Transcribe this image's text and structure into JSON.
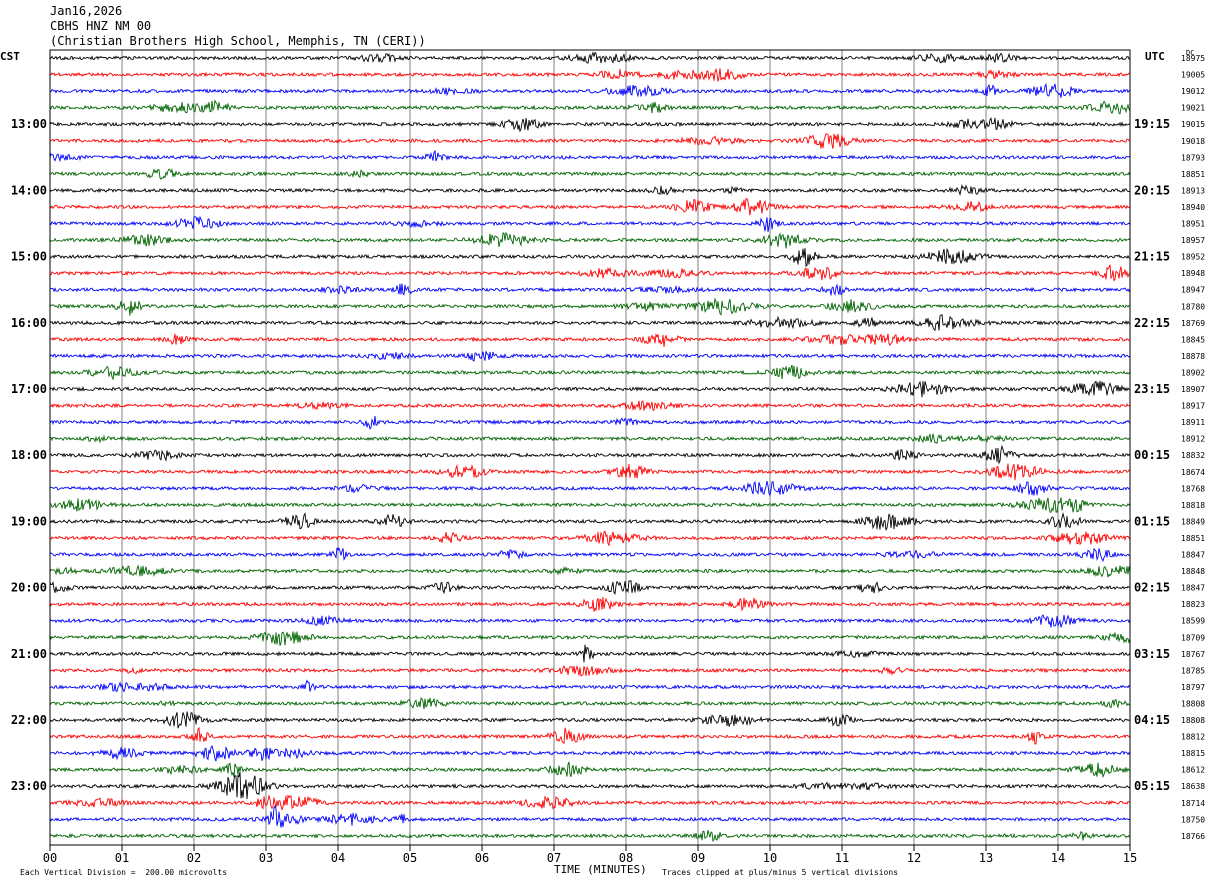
{
  "header": {
    "date": "Jan16,2026",
    "station": "CBHS HNZ NM 00",
    "location": "(Christian Brothers High School, Memphis, TN (CERI))"
  },
  "left_timezone": "CST",
  "right_timezone": "UTC",
  "right_column_label": "DC",
  "footer": {
    "scale_note": "Each Vertical Division =  200.00 microvolts",
    "clip_note": "Traces clipped at plus/minus 5 vertical divisions",
    "x_axis_title": "TIME (MINUTES)"
  },
  "colors": {
    "trace_cycle": [
      "#000000",
      "#ff0000",
      "#0000ff",
      "#006400"
    ],
    "grid": "#808080"
  },
  "chart_data": {
    "type": "line",
    "title": "CBHS HNZ NM 00",
    "xlabel": "TIME (MINUTES)",
    "x_range": [
      0,
      15
    ],
    "x_ticks": [
      "00",
      "01",
      "02",
      "03",
      "04",
      "05",
      "06",
      "07",
      "08",
      "09",
      "10",
      "11",
      "12",
      "13",
      "14",
      "15"
    ],
    "trace_minutes_each": 15,
    "row_count": 48,
    "left_hour_labels": [
      "13:00",
      "14:00",
      "15:00",
      "16:00",
      "17:00",
      "18:00",
      "19:00",
      "20:00",
      "21:00",
      "22:00",
      "23:00"
    ],
    "right_hour_labels": [
      "19:15",
      "20:15",
      "21:15",
      "22:15",
      "23:15",
      "00:15",
      "01:15",
      "02:15",
      "03:15",
      "04:15",
      "05:15"
    ],
    "hour_label_first_row": 4,
    "rows_per_hour": 4,
    "dc_offsets": [
      "18975",
      "19005",
      "19012",
      "19021",
      "19015",
      "19018",
      "18793",
      "18851",
      "18913",
      "18940",
      "18951",
      "18957",
      "18952",
      "18948",
      "18947",
      "18780",
      "18769",
      "18845",
      "18878",
      "18902",
      "18907",
      "18917",
      "18911",
      "18912",
      "18832",
      "18674",
      "18768",
      "18818",
      "18849",
      "18851",
      "18847",
      "18848",
      "18847",
      "18823",
      "18599",
      "18709",
      "18767",
      "18785",
      "18797",
      "18808",
      "18808",
      "18812",
      "18815",
      "18612",
      "18638",
      "18714",
      "18750",
      "18766"
    ]
  }
}
